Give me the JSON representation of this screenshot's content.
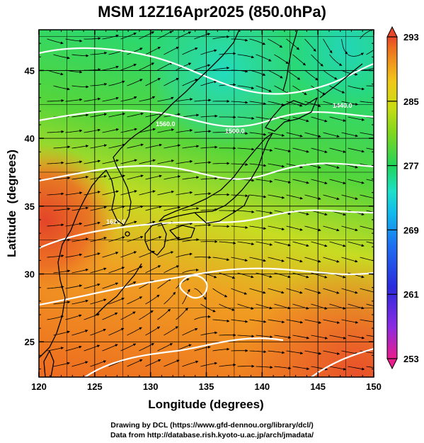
{
  "title": "MSM 12Z16Apr2025 (850.0hPa)",
  "map": {
    "xlabel": "Longitude (degrees)",
    "ylabel": "Latitude  (degrees)",
    "lon_range": [
      120,
      150
    ],
    "lat_range": [
      22.4,
      48.0
    ],
    "lon_ticks": [
      "120",
      "125",
      "130",
      "135",
      "140",
      "145",
      "150"
    ],
    "lat_ticks": [
      "25",
      "30",
      "35",
      "40",
      "45"
    ],
    "contour_labels": [
      "1500.0",
      "1560.0",
      "1440.0",
      "1620.0"
    ],
    "features": [
      "temperature shading",
      "geopotential height contours (white)",
      "wind streamlines",
      "coastlines"
    ]
  },
  "colorbar": {
    "min": 253,
    "max": 293,
    "labels": [
      "293",
      "285",
      "277",
      "269",
      "261",
      "253"
    ],
    "colors": [
      "#e91e8c",
      "#8b2be2",
      "#2a2adc",
      "#1e6ff0",
      "#12b8ee",
      "#1ee0c8",
      "#22d45a",
      "#7fd61e",
      "#c8dc14",
      "#f0c81a",
      "#f0961e",
      "#eb6a1e",
      "#e6462a"
    ]
  },
  "credits": {
    "line1": "Drawing by DCL (https://www.gfd-dennou.org/library/dcl/)",
    "line2": "Data from http://database.rish.kyoto-u.ac.jp/arch/jmadata/"
  }
}
